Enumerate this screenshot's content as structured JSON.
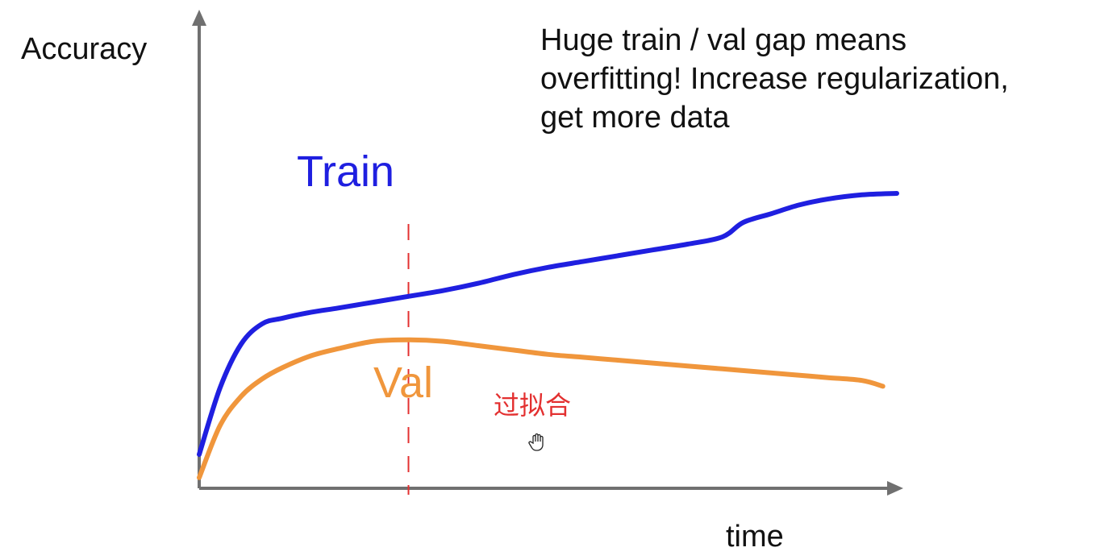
{
  "chart_data": {
    "type": "line",
    "ylabel": "Accuracy",
    "xlabel": "time",
    "annotation": [
      "Huge train / val gap means",
      "overfitting! Increase regularization,",
      "get more data"
    ],
    "handwritten_note": "过拟合",
    "xlim": [
      0,
      100
    ],
    "ylim": [
      0,
      100
    ],
    "grid": false,
    "legend": "inline labels",
    "marker_x": 30,
    "series": [
      {
        "name": "Train",
        "color": "#1f1fe0",
        "x": [
          0,
          3,
          6,
          9,
          12,
          16,
          20,
          25,
          30,
          35,
          40,
          45,
          50,
          55,
          60,
          65,
          70,
          75,
          78,
          82,
          86,
          90,
          95,
          100
        ],
        "y": [
          10,
          33,
          48,
          55,
          57,
          59,
          60.5,
          62.5,
          64.5,
          66.5,
          69,
          72,
          74.5,
          76.5,
          78.5,
          80.5,
          82.5,
          85,
          90,
          93,
          96,
          98,
          99.5,
          100
        ]
      },
      {
        "name": "Val",
        "color": "#f0963c",
        "x": [
          0,
          3,
          6,
          9,
          12,
          16,
          20,
          25,
          30,
          35,
          40,
          45,
          50,
          55,
          60,
          65,
          70,
          75,
          80,
          85,
          90,
          95,
          98
        ],
        "y": [
          2,
          20,
          30,
          36,
          40,
          44,
          46.5,
          49,
          49.5,
          49,
          47.5,
          46,
          44.5,
          43.5,
          42.5,
          41.5,
          40.5,
          39.5,
          38.5,
          37.5,
          36.5,
          35.5,
          33.5
        ]
      }
    ]
  },
  "colors": {
    "axis": "#707070",
    "text": "#111111",
    "marker": "#e33030",
    "note": "#e33030"
  }
}
